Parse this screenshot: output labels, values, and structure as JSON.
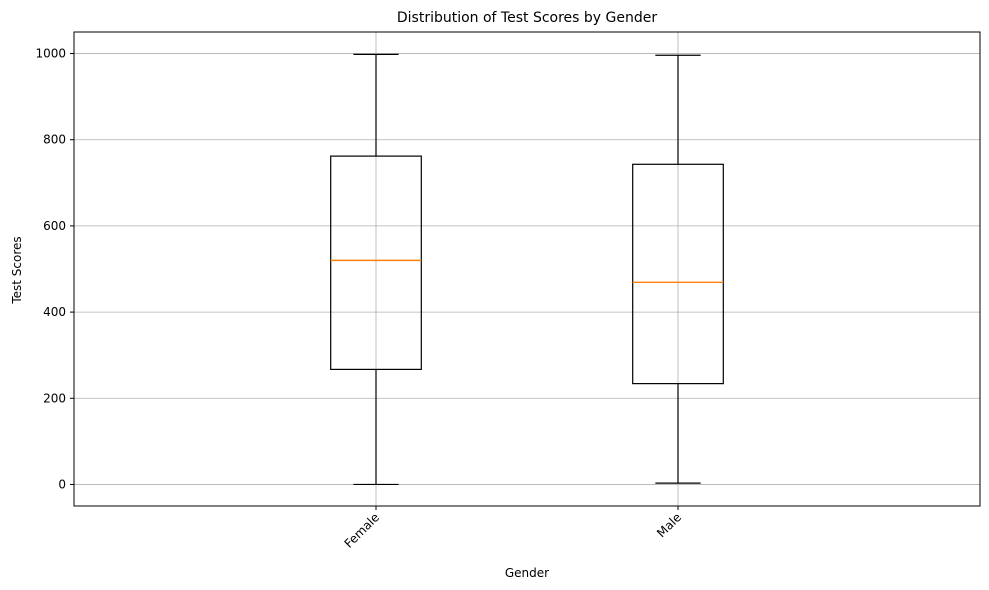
{
  "chart_data": {
    "type": "box",
    "title": "Distribution of Test Scores by Gender",
    "xlabel": "Gender",
    "ylabel": "Test Scores",
    "categories": [
      "Female",
      "Male"
    ],
    "boxes": [
      {
        "category": "Female",
        "whisker_low": 0,
        "q1": 267,
        "median": 520,
        "q3": 762,
        "whisker_high": 998
      },
      {
        "category": "Male",
        "whisker_low": 3,
        "q1": 234,
        "median": 469,
        "q3": 743,
        "whisker_high": 996
      }
    ],
    "ylim": [
      -50,
      1050
    ],
    "yticks": [
      0,
      200,
      400,
      600,
      800,
      1000
    ],
    "grid": true,
    "xtick_rotation_deg": 45,
    "colors": {
      "box": "#000000",
      "median": "#ff7f0e",
      "grid": "#b0b0b0",
      "axes": "#000000"
    }
  }
}
